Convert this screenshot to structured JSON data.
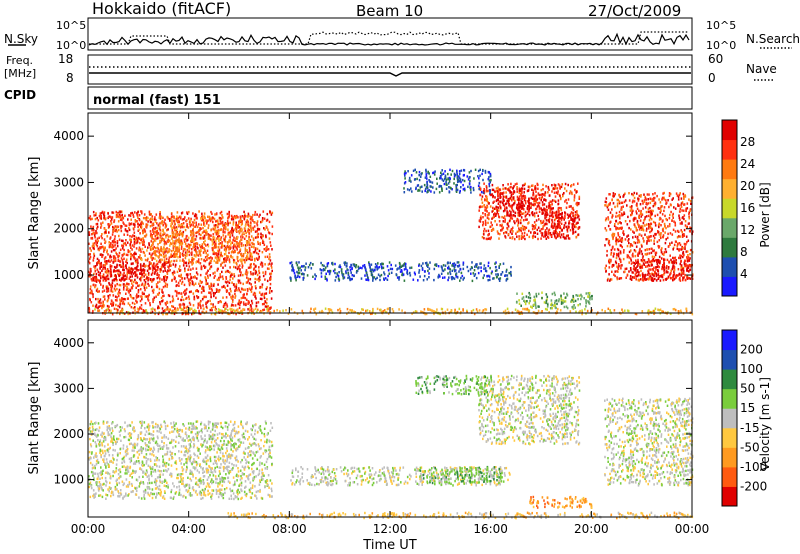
{
  "header": {
    "title": "Hokkaido (fitACF)",
    "beam": "Beam 10",
    "date": "27/Oct/2009"
  },
  "top_panels": {
    "nsky_label": "N.Sky",
    "nsearch_label": "N.Search",
    "noise_ticks_left": [
      "10^5",
      "10^0"
    ],
    "noise_ticks_right": [
      "10^5",
      "10^0"
    ],
    "freq_label_1": "Freq.",
    "freq_label_2": "[MHz]",
    "freq_ticks": [
      "18",
      "8"
    ],
    "nave_label": "Nave",
    "nave_ticks": [
      "60",
      "0"
    ],
    "cpid_label": "CPID",
    "cpid_value": "normal (fast) 151"
  },
  "colors": {
    "power": [
      "#1a1aff",
      "#1e4fb0",
      "#2e7a3e",
      "#6aa86a",
      "#c8d82a",
      "#ffb030",
      "#ff7a10",
      "#ff3010",
      "#e00000"
    ],
    "velocity": [
      "#e00000",
      "#ff5a10",
      "#ff9a20",
      "#ffc840",
      "#bebebe",
      "#7acd3c",
      "#2e8a3e",
      "#1e4fb0",
      "#1a1aff"
    ]
  },
  "chart_data": [
    {
      "type": "heatmap",
      "name": "Power",
      "ylabel": "Slant Range [km]",
      "colorbar_label": "Power [dB]",
      "colorbar_ticks": [
        "28",
        "24",
        "20",
        "16",
        "12",
        "8",
        "4"
      ],
      "yticks": [
        "4000",
        "3000",
        "2000",
        "1000"
      ],
      "ylim": [
        180,
        4500
      ],
      "xlim": [
        0,
        24
      ],
      "regions": [
        {
          "t0": 0.0,
          "t1": 7.3,
          "r0": 180,
          "r1": 2400,
          "level": 7
        },
        {
          "t0": 0.0,
          "t1": 3.2,
          "r0": 900,
          "r1": 1300,
          "level": 8
        },
        {
          "t0": 2.0,
          "t1": 6.5,
          "r0": 1300,
          "r1": 2300,
          "level": 6
        },
        {
          "t0": 8.0,
          "t1": 16.8,
          "r0": 900,
          "r1": 1300,
          "level": 1
        },
        {
          "t0": 15.5,
          "t1": 19.5,
          "r0": 1800,
          "r1": 3000,
          "level": 7
        },
        {
          "t0": 16.0,
          "t1": 18.5,
          "r0": 2300,
          "r1": 2900,
          "level": 8
        },
        {
          "t0": 18.0,
          "t1": 19.5,
          "r0": 1800,
          "r1": 2400,
          "level": 8
        },
        {
          "t0": 20.5,
          "t1": 24.0,
          "r0": 900,
          "r1": 2800,
          "level": 7
        },
        {
          "t0": 21.5,
          "t1": 24.0,
          "r0": 900,
          "r1": 1400,
          "level": 8
        },
        {
          "t0": 0.0,
          "t1": 24.0,
          "r0": 180,
          "r1": 300,
          "level": 5
        },
        {
          "t0": 17.0,
          "t1": 20.0,
          "r0": 300,
          "r1": 650,
          "level": 3
        },
        {
          "t0": 12.5,
          "t1": 16.0,
          "r0": 2800,
          "r1": 3300,
          "level": 1
        }
      ]
    },
    {
      "type": "heatmap",
      "name": "Velocity",
      "ylabel": "Slant Range [km]",
      "colorbar_label": "Velocity [m s-1]",
      "colorbar_ticks": [
        "200",
        "100",
        "50",
        "15",
        "-15",
        "-50",
        "-100",
        "-200"
      ],
      "yticks": [
        "4000",
        "3000",
        "2000",
        "1000"
      ],
      "ylim": [
        180,
        4500
      ],
      "xlim": [
        0,
        24
      ],
      "xticks": [
        "00:00",
        "04:00",
        "08:00",
        "12:00",
        "16:00",
        "20:00",
        "00:00"
      ],
      "xlabel": "Time UT",
      "regions": [
        {
          "t0": 0.0,
          "t1": 7.3,
          "r0": 600,
          "r1": 2300,
          "level": 4
        },
        {
          "t0": 8.0,
          "t1": 16.8,
          "r0": 900,
          "r1": 1300,
          "level": 4
        },
        {
          "t0": 13.0,
          "t1": 16.5,
          "r0": 950,
          "r1": 1300,
          "level": 5
        },
        {
          "t0": 15.5,
          "t1": 19.5,
          "r0": 1800,
          "r1": 3300,
          "level": 4
        },
        {
          "t0": 20.5,
          "t1": 24.0,
          "r0": 900,
          "r1": 2800,
          "level": 4
        },
        {
          "t0": 5.5,
          "t1": 24.0,
          "r0": 180,
          "r1": 300,
          "level": 3
        },
        {
          "t0": 17.5,
          "t1": 20.0,
          "r0": 400,
          "r1": 650,
          "level": 2
        },
        {
          "t0": 13.0,
          "t1": 16.0,
          "r0": 2900,
          "r1": 3300,
          "level": 5
        }
      ]
    }
  ]
}
